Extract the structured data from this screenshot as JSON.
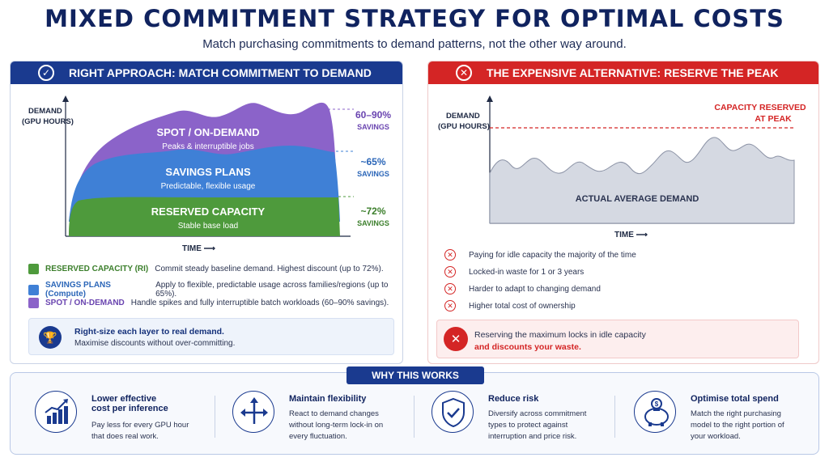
{
  "header": {
    "title": "MIXED COMMITMENT STRATEGY FOR OPTIMAL COSTS",
    "subtitle": "Match purchasing commitments to demand patterns, not the other way around."
  },
  "colors": {
    "navy": "#1a3a8f",
    "red": "#d42525",
    "spot": "#8b63c9",
    "savings": "#3f80d6",
    "reserved": "#4e9a3c",
    "demand_area": "#d5d9e2"
  },
  "left": {
    "heading": "RIGHT APPROACH: MATCH COMMITMENT TO DEMAND",
    "icon": "check-circle-icon",
    "y_label_line1": "DEMAND",
    "y_label_line2": "(GPU HOURS)",
    "x_label": "TIME ⟶",
    "layers": {
      "spot": {
        "title": "SPOT / ON-DEMAND",
        "sub": "Peaks & interruptible jobs",
        "savings_value": "60–90%",
        "savings_word": "SAVINGS"
      },
      "savings": {
        "title": "SAVINGS PLANS",
        "sub": "Predictable, flexible usage",
        "savings_value": "~65%",
        "savings_word": "SAVINGS"
      },
      "reserved": {
        "title": "RESERVED CAPACITY",
        "sub": "Stable base load",
        "savings_value": "~72%",
        "savings_word": "SAVINGS"
      }
    },
    "legend": [
      {
        "label": "RESERVED CAPACITY (RI)",
        "text": "Commit steady baseline demand. Highest discount (up to 72%).",
        "color": "#4e9a3c"
      },
      {
        "label": "SAVINGS PLANS (Compute)",
        "text": "Apply to flexible, predictable usage across families/regions (up to 65%).",
        "color": "#3f80d6"
      },
      {
        "label": "SPOT / ON-DEMAND",
        "text": "Handle spikes and fully interruptible batch workloads (60–90% savings).",
        "color": "#8b63c9"
      }
    ],
    "tip": {
      "icon": "trophy-icon",
      "line1": "Right-size each layer to real demand.",
      "line2": "Maximise discounts without over-committing."
    }
  },
  "right": {
    "heading": "THE EXPENSIVE ALTERNATIVE: RESERVE THE PEAK",
    "icon": "x-circle-icon",
    "y_label_line1": "DEMAND",
    "y_label_line2": "(GPU HOURS)",
    "x_label": "TIME ⟶",
    "reserved_line1": "CAPACITY RESERVED",
    "reserved_line2": "AT PEAK",
    "area_label": "ACTUAL AVERAGE DEMAND",
    "issues": [
      "Paying for idle capacity the majority of the time",
      "Locked-in waste for 1 or 3 years",
      "Harder to adapt to changing demand",
      "Higher total cost of ownership"
    ],
    "warning": {
      "icon": "x-icon",
      "line1": "Reserving the maximum locks in idle capacity",
      "line2": "and discounts your waste."
    }
  },
  "why": {
    "heading": "WHY THIS WORKS",
    "items": [
      {
        "icon": "bar-chart-growth-icon",
        "title_line1": "Lower effective",
        "title_line2": "cost per inference",
        "text": "Pay less for every GPU hour that does real work."
      },
      {
        "icon": "split-arrows-icon",
        "title_line1": "Maintain flexibility",
        "title_line2": "",
        "text": "React to demand changes without long-term lock-in on every fluctuation."
      },
      {
        "icon": "shield-check-icon",
        "title_line1": "Reduce risk",
        "title_line2": "",
        "text": "Diversify across commitment types to protect against interruption and price risk."
      },
      {
        "icon": "piggy-bank-icon",
        "title_line1": "Optimise total spend",
        "title_line2": "",
        "text": "Match the right purchasing model to the right portion of your workload."
      }
    ]
  }
}
